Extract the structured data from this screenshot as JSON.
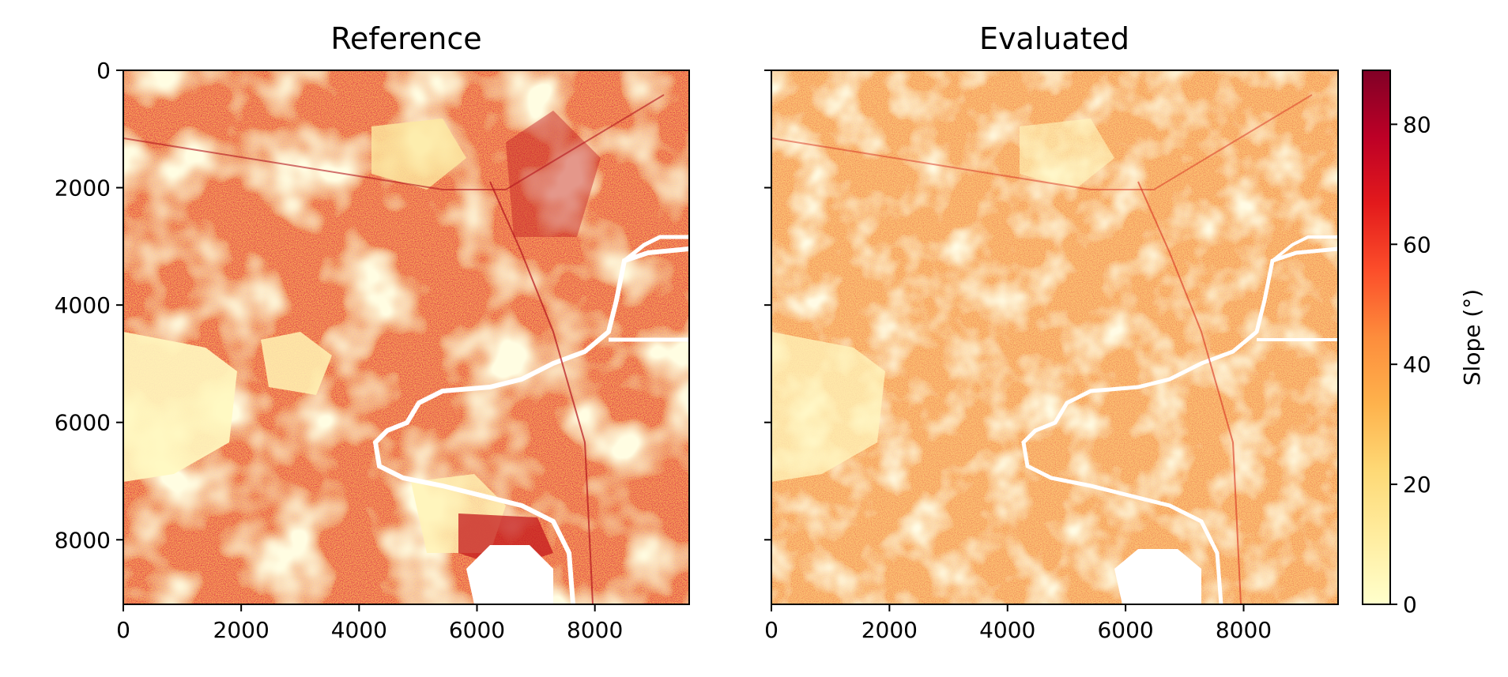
{
  "chart_data": [
    {
      "type": "heatmap",
      "title": "Reference",
      "x_ticks": [
        "0",
        "2000",
        "4000",
        "6000",
        "8000"
      ],
      "y_ticks": [
        "0",
        "2000",
        "4000",
        "6000",
        "8000"
      ],
      "xlim": [
        0,
        9600
      ],
      "ylim": [
        9100,
        0
      ],
      "colormap": "YlOrRd",
      "mean_slope_estimate": 38
    },
    {
      "type": "heatmap",
      "title": "Evaluated",
      "x_ticks": [
        "0",
        "2000",
        "4000",
        "6000",
        "8000"
      ],
      "y_ticks": [
        "0",
        "2000",
        "4000",
        "6000",
        "8000"
      ],
      "xlim": [
        0,
        9600
      ],
      "ylim": [
        9100,
        0
      ],
      "colormap": "YlOrRd",
      "mean_slope_estimate": 28
    }
  ],
  "colorbar": {
    "label": "Slope (°)",
    "ticks": [
      "0",
      "20",
      "40",
      "60",
      "80"
    ],
    "range": [
      0,
      89
    ],
    "colors": [
      "#ffffcc",
      "#ffeda0",
      "#fed976",
      "#feb24c",
      "#fd8d3c",
      "#fc4e2a",
      "#e31a1c",
      "#bd0026",
      "#800026"
    ]
  }
}
